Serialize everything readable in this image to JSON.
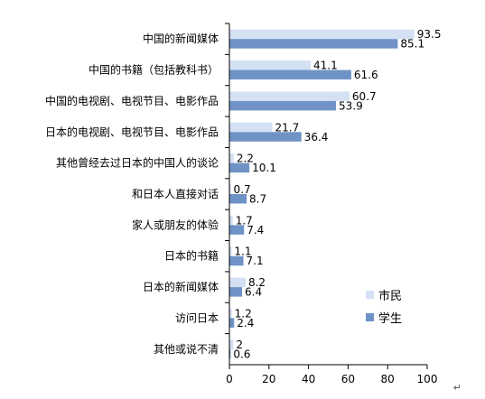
{
  "chart_data": {
    "type": "bar",
    "orientation": "horizontal",
    "categories": [
      "中国的新闻媒体",
      "中国的书籍（包括教科书）",
      "中国的电视剧、电视节目、电影作品",
      "日本的电视剧、电视节目、电影作品",
      "其他曾经去过日本的中国人的谈论",
      "和日本人直接对话",
      "家人或朋友的体验",
      "日本的书籍",
      "日本的新闻媒体",
      "访问日本",
      "其他或说不清"
    ],
    "series": [
      {
        "name": "市民",
        "values": [
          93.5,
          41.1,
          60.7,
          21.7,
          2.2,
          0.7,
          1.7,
          1.1,
          8.2,
          1.2,
          2
        ],
        "labels": [
          "93.5",
          "41.1",
          "60.7",
          "21.7",
          "2.2",
          "0.7",
          "1.7",
          "1.1",
          "8.2",
          "1.2",
          "2"
        ],
        "color": "#d3e1f3"
      },
      {
        "name": "学生",
        "values": [
          85.1,
          61.6,
          53.9,
          36.4,
          10.1,
          8.7,
          7.4,
          7.1,
          6.4,
          2.4,
          0.6
        ],
        "labels": [
          "85.1",
          "61.6",
          "53.9",
          "36.4",
          "10.1",
          "8.7",
          "7.4",
          "7.1",
          "6.4",
          "2.4",
          "0.6"
        ],
        "color": "#6f93c6"
      }
    ],
    "xlim": [
      0,
      100
    ],
    "xticks": [
      0,
      20,
      40,
      60,
      80,
      100
    ],
    "title": "",
    "xlabel": "",
    "ylabel": "",
    "grid": false,
    "legend_position": "bottom-right"
  },
  "page": {
    "return_mark": "↵"
  }
}
